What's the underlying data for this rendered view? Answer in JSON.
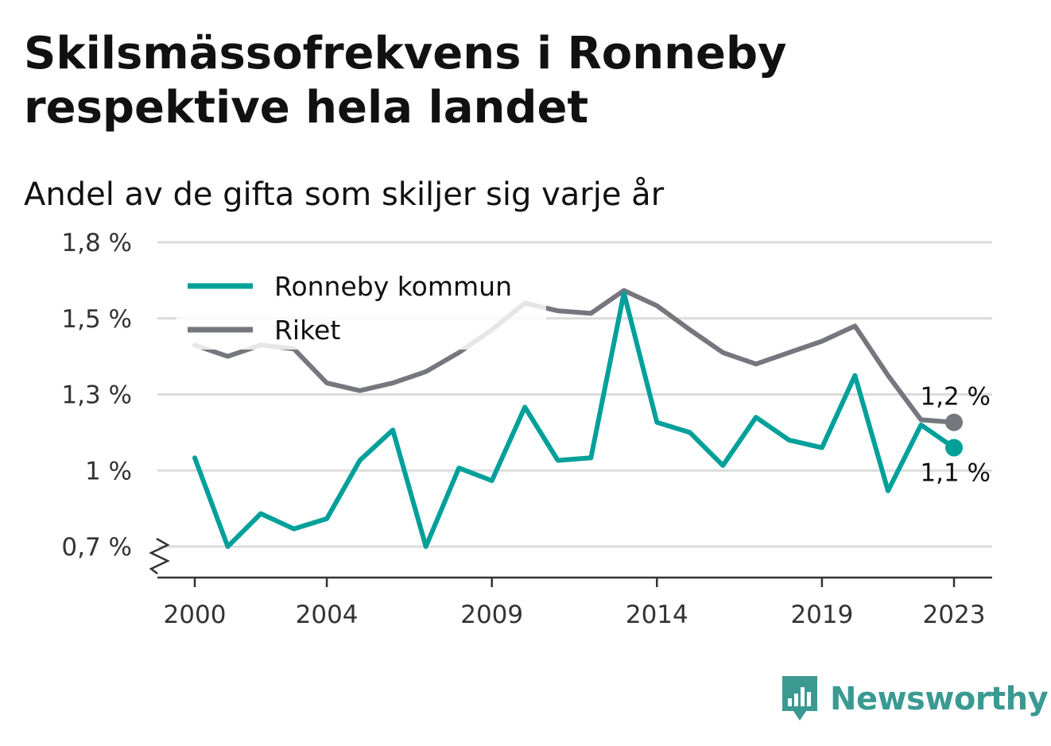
{
  "title": "Skilsmässofrekvens i Ronneby respektive hela landet",
  "subtitle": "Andel av de gifta som skiljer sig varje år",
  "brand": {
    "name": "Newsworthy",
    "color": "#3a9a92",
    "icon": "bar-chart-bubble-icon"
  },
  "chart_data": {
    "type": "line",
    "x": [
      2000,
      2001,
      2002,
      2003,
      2004,
      2005,
      2006,
      2007,
      2008,
      2009,
      2010,
      2011,
      2012,
      2013,
      2014,
      2015,
      2016,
      2017,
      2018,
      2019,
      2020,
      2021,
      2022,
      2023
    ],
    "x_ticks": [
      2000,
      2004,
      2009,
      2014,
      2019,
      2023
    ],
    "x_tick_labels": [
      "2000",
      "2004",
      "2009",
      "2014",
      "2019",
      "2023"
    ],
    "y_ticks": [
      0.7,
      1.0,
      1.3,
      1.5,
      1.8
    ],
    "y_tick_labels": [
      "0,7 %",
      "1 %",
      "1,3 %",
      "1,5 %",
      "1,8 %"
    ],
    "axis_break": true,
    "grid": true,
    "legend_position": "top-left",
    "series": [
      {
        "name": "Ronneby kommun",
        "color": "#00a09a",
        "values": [
          1.05,
          0.7,
          0.83,
          0.77,
          0.81,
          1.04,
          1.16,
          0.7,
          1.01,
          0.96,
          1.25,
          1.04,
          1.05,
          1.6,
          1.19,
          1.15,
          1.02,
          1.21,
          1.12,
          1.09,
          1.35,
          0.92,
          1.18,
          1.09
        ],
        "end_label": "1,1 %"
      },
      {
        "name": "Riket",
        "color": "#76767e",
        "values": [
          1.43,
          1.4,
          1.43,
          1.42,
          1.33,
          1.31,
          1.33,
          1.36,
          1.41,
          1.47,
          1.56,
          1.53,
          1.52,
          1.61,
          1.55,
          1.47,
          1.41,
          1.38,
          1.41,
          1.44,
          1.48,
          1.35,
          1.2,
          1.19
        ],
        "end_label": "1,2 %"
      }
    ]
  }
}
